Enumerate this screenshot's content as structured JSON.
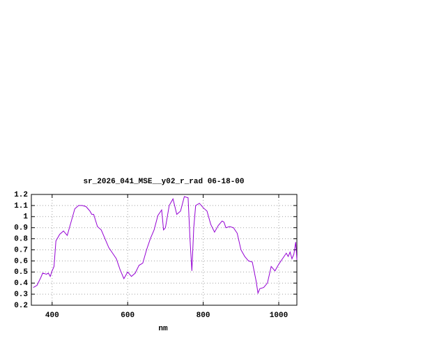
{
  "chart_data": {
    "type": "line",
    "title": "sr_2026_041_MSE__y02_r_rad 06-18-00",
    "xlabel": "nm",
    "xlim": [
      345,
      1048
    ],
    "xticks": [
      400,
      600,
      800,
      1000
    ],
    "ylim": [
      0.2,
      1.2
    ],
    "yticks": [
      0.2,
      0.3,
      0.4,
      0.5,
      0.6,
      0.7,
      0.8,
      0.9,
      1,
      1.1,
      1.2
    ],
    "grid": true,
    "x": [
      350,
      360,
      370,
      375,
      385,
      390,
      395,
      400,
      405,
      410,
      420,
      430,
      440,
      450,
      460,
      470,
      480,
      490,
      500,
      505,
      510,
      520,
      530,
      540,
      550,
      560,
      570,
      580,
      590,
      600,
      610,
      620,
      630,
      640,
      650,
      660,
      670,
      680,
      690,
      695,
      700,
      710,
      720,
      730,
      740,
      750,
      760,
      765,
      770,
      775,
      780,
      790,
      800,
      810,
      820,
      830,
      840,
      850,
      855,
      860,
      870,
      880,
      890,
      900,
      910,
      920,
      930,
      940,
      945,
      950,
      960,
      970,
      980,
      990,
      1000,
      1010,
      1020,
      1025,
      1030,
      1035,
      1040,
      1045,
      1048
    ],
    "series": [
      {
        "color": "#9400d3",
        "values": [
          0.36,
          0.38,
          0.45,
          0.49,
          0.48,
          0.49,
          0.46,
          0.51,
          0.55,
          0.78,
          0.84,
          0.87,
          0.83,
          0.95,
          1.07,
          1.1,
          1.1,
          1.09,
          1.05,
          1.02,
          1.02,
          0.91,
          0.88,
          0.8,
          0.72,
          0.67,
          0.62,
          0.52,
          0.44,
          0.5,
          0.46,
          0.49,
          0.56,
          0.58,
          0.7,
          0.8,
          0.88,
          1.01,
          1.06,
          0.88,
          0.9,
          1.1,
          1.16,
          1.02,
          1.05,
          1.18,
          1.17,
          0.8,
          0.51,
          0.9,
          1.1,
          1.12,
          1.08,
          1.05,
          0.93,
          0.86,
          0.92,
          0.96,
          0.95,
          0.9,
          0.91,
          0.9,
          0.85,
          0.7,
          0.64,
          0.6,
          0.59,
          0.42,
          0.31,
          0.35,
          0.36,
          0.4,
          0.55,
          0.51,
          0.57,
          0.62,
          0.67,
          0.64,
          0.68,
          0.62,
          0.66,
          0.77,
          0.61
        ]
      }
    ]
  }
}
